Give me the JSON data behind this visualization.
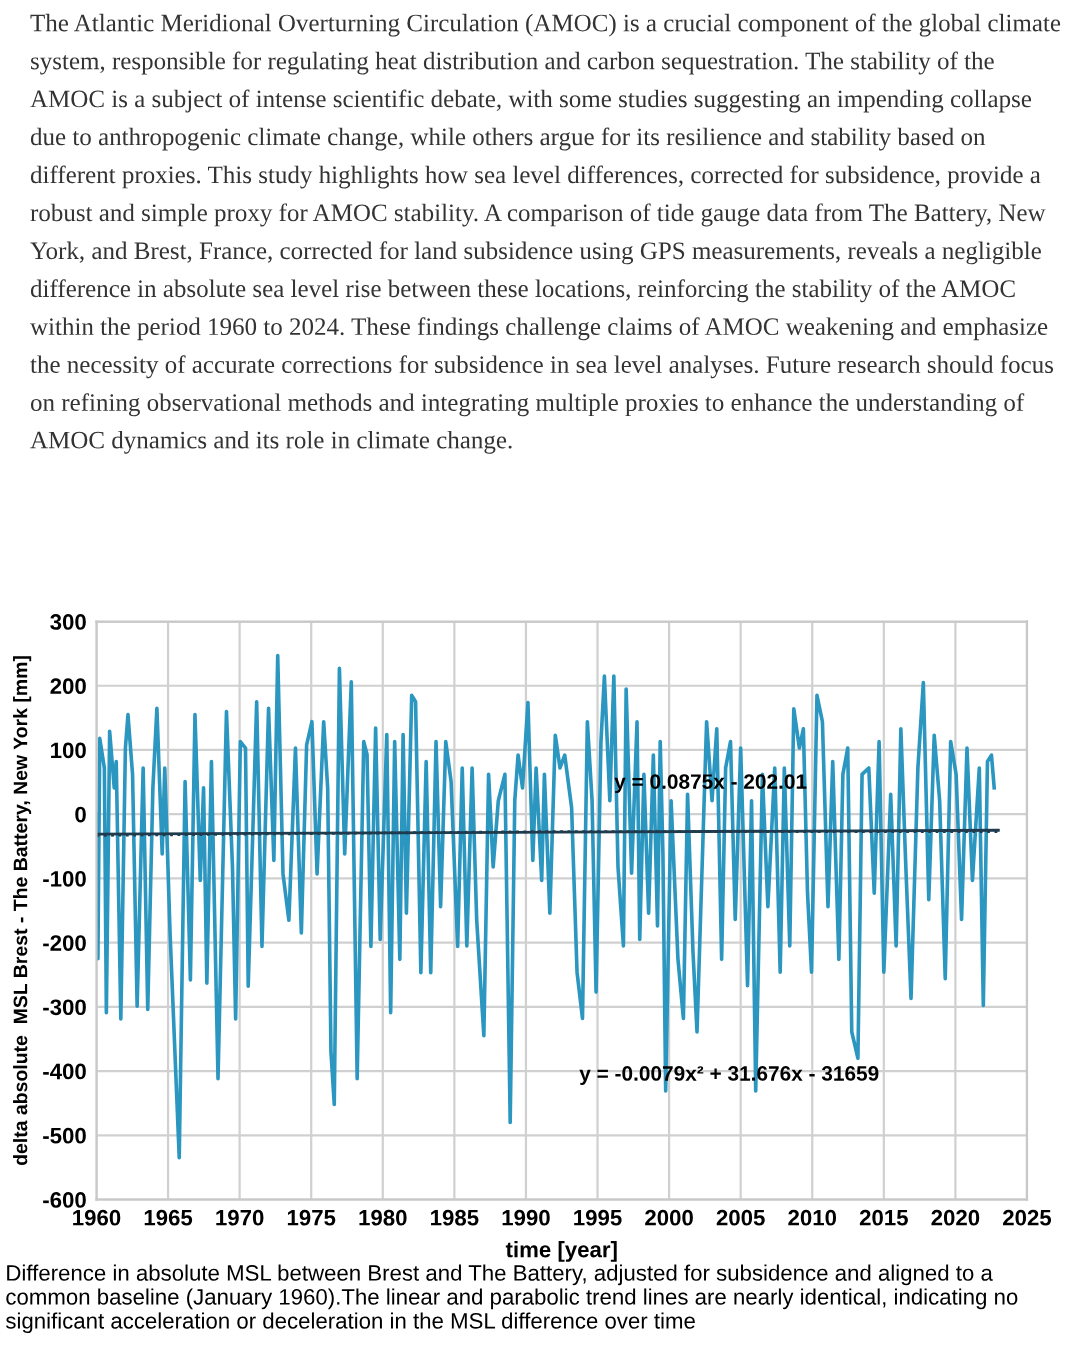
{
  "chart_data": {
    "type": "line",
    "subtitle": "The Atlantic Meridional Overturning Circulation (AMOC) is a crucial component of the global climate system, responsible for regulating heat distribution and carbon sequestration. The stability of the AMOC is a subject of intense scientific debate, with some studies suggesting an impending collapse due to anthropogenic climate change, while others argue for its resilience and stability based on different proxies. This study highlights how sea level differences, corrected for subsidence, provide a robust and simple proxy for AMOC stability. A comparison of tide gauge data from The Battery, New York, and Brest, France, corrected for land subsidence using GPS measurements, reveals a negligible difference in absolute sea level rise between these locations, reinforcing the stability of the AMOC within the period 1960 to 2024. These findings challenge claims of AMOC weakening and emphasize the necessity of accurate corrections for subsidence in sea level analyses. Future research should focus on refining observational methods and integrating multiple proxies to enhance the understanding of AMOC dynamics and its role in climate change.",
    "xlabel": "time [year]",
    "ylabel": "delta absolute  MSL Brest - The Battery, New York [mm]",
    "annotations": [
      "y = 0.0875x - 202.01",
      "y = -0.0079x² + 31.676x - 31659",
      "Difference in absolute MSL between Brest and The Battery, adjusted for subsidence and aligned to a common baseline (January 1960).The linear and parabolic trend lines are nearly identical, indicating no significant acceleration or deceleration in the MSL difference over time"
    ],
    "xlim": [
      1960,
      2025
    ],
    "xticks": [
      1960,
      1965,
      1970,
      1975,
      1980,
      1985,
      1990,
      1995,
      2000,
      2005,
      2010,
      2015,
      2020,
      2025
    ],
    "ylim": [
      -600,
      300
    ],
    "yticks": [
      -600,
      -500,
      -400,
      -300,
      -200,
      -100,
      0,
      100,
      200,
      300
    ],
    "grid": true,
    "legend": false,
    "series": [
      {
        "color": "#2b96bf",
        "line_style": "solid",
        "x": [
          1960.0,
          1960.1,
          1960.23,
          1960.55,
          1960.69,
          1960.92,
          1961.24,
          1961.38,
          1961.7,
          1962.02,
          1962.2,
          1962.52,
          1962.84,
          1963.26,
          1963.58,
          1963.94,
          1964.22,
          1964.59,
          1964.77,
          1965.14,
          1965.78,
          1966.19,
          1966.56,
          1966.88,
          1967.25,
          1967.48,
          1967.71,
          1968.03,
          1968.49,
          1969.08,
          1969.5,
          1969.72,
          1970.05,
          1970.41,
          1970.6,
          1971.19,
          1971.56,
          1972.02,
          1972.39,
          1972.66,
          1973.03,
          1973.44,
          1973.9,
          1974.31,
          1974.68,
          1975.05,
          1975.41,
          1975.87,
          1976.15,
          1976.38,
          1976.61,
          1976.97,
          1977.34,
          1977.8,
          1978.21,
          1978.67,
          1978.9,
          1979.17,
          1979.5,
          1979.82,
          1980.28,
          1980.55,
          1980.83,
          1981.19,
          1981.42,
          1981.65,
          1982.02,
          1982.29,
          1982.66,
          1983.03,
          1983.35,
          1983.72,
          1984.04,
          1984.4,
          1984.77,
          1985.23,
          1985.55,
          1985.87,
          1986.24,
          1986.56,
          1987.06,
          1987.39,
          1987.71,
          1988.07,
          1988.53,
          1988.9,
          1989.22,
          1989.45,
          1989.76,
          1990.14,
          1990.48,
          1990.71,
          1991.1,
          1991.29,
          1991.67,
          1992.05,
          1992.38,
          1992.71,
          1993.19,
          1993.57,
          1993.95,
          1994.29,
          1994.62,
          1994.9,
          1995.24,
          1995.48,
          1995.86,
          1996.14,
          1996.43,
          1996.81,
          1997.0,
          1997.38,
          1997.76,
          1997.95,
          1998.24,
          1998.57,
          1998.9,
          1999.19,
          1999.38,
          1999.57,
          1999.76,
          2000.14,
          2000.62,
          2001.0,
          2001.29,
          2001.67,
          2001.95,
          2002.62,
          2003.0,
          2003.33,
          2003.67,
          2003.95,
          2004.29,
          2004.62,
          2005.0,
          2005.48,
          2005.76,
          2006.05,
          2006.52,
          2006.9,
          2007.38,
          2007.76,
          2008.05,
          2008.43,
          2008.71,
          2009.1,
          2009.38,
          2009.67,
          2009.95,
          2010.33,
          2010.71,
          2011.1,
          2011.43,
          2011.86,
          2012.14,
          2012.48,
          2012.76,
          2013.19,
          2013.48,
          2013.95,
          2014.33,
          2014.67,
          2015.0,
          2015.48,
          2015.86,
          2016.19,
          2016.52,
          2016.9,
          2017.38,
          2017.76,
          2018.14,
          2018.52,
          2018.9,
          2019.29,
          2019.67,
          2020.05,
          2020.43,
          2020.81,
          2021.19,
          2021.67,
          2021.95,
          2022.24,
          2022.52,
          2022.71
        ],
        "values": [
          0,
          -225,
          118,
          72,
          -309,
          129,
          41,
          82,
          -319,
          103,
          155,
          62,
          -299,
          72,
          -304,
          41,
          165,
          -62,
          72,
          -185,
          -535,
          51,
          -258,
          155,
          -103,
          41,
          -263,
          82,
          -412,
          160,
          -82,
          -319,
          113,
          103,
          -268,
          175,
          -206,
          165,
          -72,
          247,
          -93,
          -165,
          103,
          -185,
          108,
          144,
          -93,
          144,
          41,
          -370,
          -452,
          227,
          -62,
          206,
          -412,
          113,
          93,
          -206,
          134,
          -195,
          124,
          -309,
          113,
          -226,
          124,
          -154,
          185,
          175,
          -247,
          82,
          -247,
          113,
          -144,
          113,
          51,
          -206,
          72,
          -205,
          72,
          -165,
          -345,
          62,
          -82,
          21,
          62,
          -480,
          21,
          92,
          41,
          174,
          -72,
          72,
          -103,
          62,
          -154,
          123,
          72,
          92,
          10,
          -246,
          -318,
          144,
          21,
          -277,
          113,
          215,
          21,
          215,
          -82,
          -205,
          195,
          -92,
          144,
          -195,
          62,
          -154,
          92,
          -174,
          113,
          -62,
          -431,
          21,
          -226,
          -318,
          31,
          -215,
          -339,
          144,
          21,
          133,
          -226,
          72,
          113,
          -164,
          103,
          -267,
          21,
          -431,
          62,
          -144,
          72,
          -246,
          72,
          -205,
          164,
          103,
          133,
          -123,
          -246,
          185,
          144,
          -144,
          82,
          -226,
          62,
          103,
          -339,
          -380,
          62,
          72,
          -123,
          113,
          -246,
          31,
          -205,
          133,
          -72,
          -287,
          72,
          205,
          -133,
          123,
          21,
          -256,
          113,
          62,
          -164,
          103,
          -103,
          72,
          -298,
          82,
          92,
          41
        ]
      },
      {
        "color": "#1f3b4d",
        "line_style": "solid",
        "x": [
          1960,
          1992,
          2023
        ],
        "values": [
          -31,
          -28,
          -25
        ]
      },
      {
        "color": "#1f3b4d",
        "line_style": "dotted",
        "x": [
          1960,
          1992,
          2023
        ],
        "values": [
          -33,
          -27,
          -27
        ]
      }
    ]
  }
}
